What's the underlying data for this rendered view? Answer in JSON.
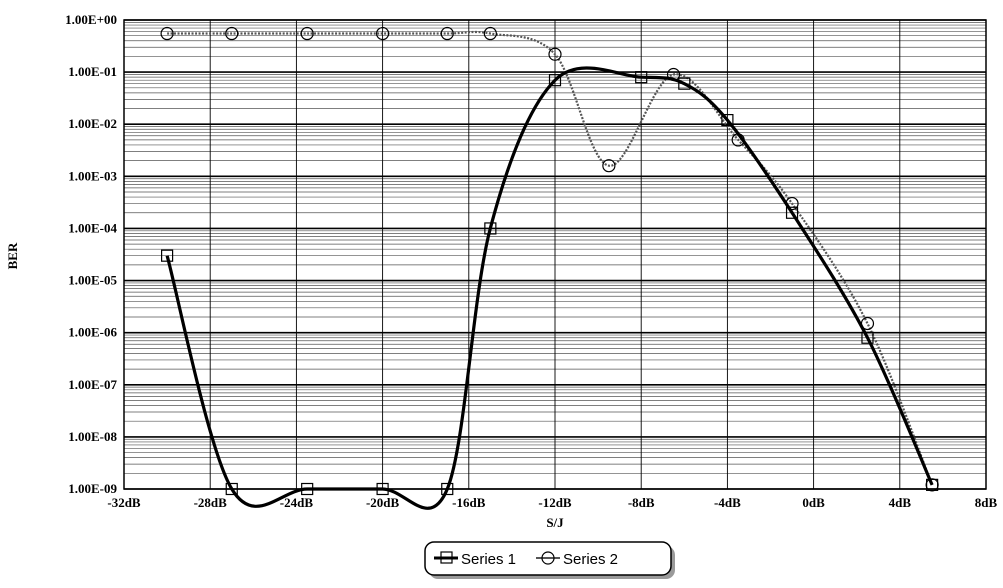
{
  "chart_data": {
    "type": "line",
    "title": "",
    "xlabel": "S/J",
    "ylabel": "BER",
    "x_unit": "dB",
    "xlim": [
      -32,
      8
    ],
    "x_ticks": [
      -32,
      -28,
      -24,
      -20,
      -16,
      -12,
      -8,
      -4,
      0,
      4,
      8
    ],
    "x_tick_labels": [
      "-32dB",
      "-28dB",
      "-24dB",
      "-20dB",
      "-16dB",
      "-12dB",
      "-8dB",
      "-4dB",
      "0dB",
      "4dB",
      "8dB"
    ],
    "y_scale": "log",
    "ylim": [
      1e-09,
      1
    ],
    "y_ticks": [
      1,
      0.1,
      0.01,
      0.001,
      0.0001,
      1e-05,
      1e-06,
      1e-07,
      1e-08,
      1e-09
    ],
    "y_tick_labels": [
      "1.00E+00",
      "1.00E-01",
      "1.00E-02",
      "1.00E-03",
      "1.00E-04",
      "1.00E-05",
      "1.00E-06",
      "1.00E-07",
      "1.00E-08",
      "1.00E-09"
    ],
    "grid": true,
    "legend_position": "bottom-center",
    "series": [
      {
        "name": "Series 1",
        "marker": "square",
        "color": "#000000",
        "x": [
          -30,
          -27,
          -23.5,
          -20,
          -17,
          -15,
          -12,
          -8,
          -6,
          -4,
          -1,
          2.5,
          5.5
        ],
        "y": [
          3e-05,
          1e-09,
          1e-09,
          1e-09,
          1e-09,
          0.0001,
          0.07,
          0.08,
          0.06,
          0.012,
          0.0002,
          8e-07,
          1.2e-09
        ]
      },
      {
        "name": "Series 2",
        "marker": "circle",
        "color": "#555555",
        "x": [
          -30,
          -27,
          -23.5,
          -20,
          -17,
          -15,
          -12,
          -9.5,
          -6.5,
          -3.5,
          -1,
          2.5,
          5.5
        ],
        "y": [
          0.55,
          0.55,
          0.55,
          0.55,
          0.55,
          0.55,
          0.22,
          0.0016,
          0.09,
          0.005,
          0.0003,
          1.5e-06,
          1.2e-09
        ]
      }
    ]
  }
}
